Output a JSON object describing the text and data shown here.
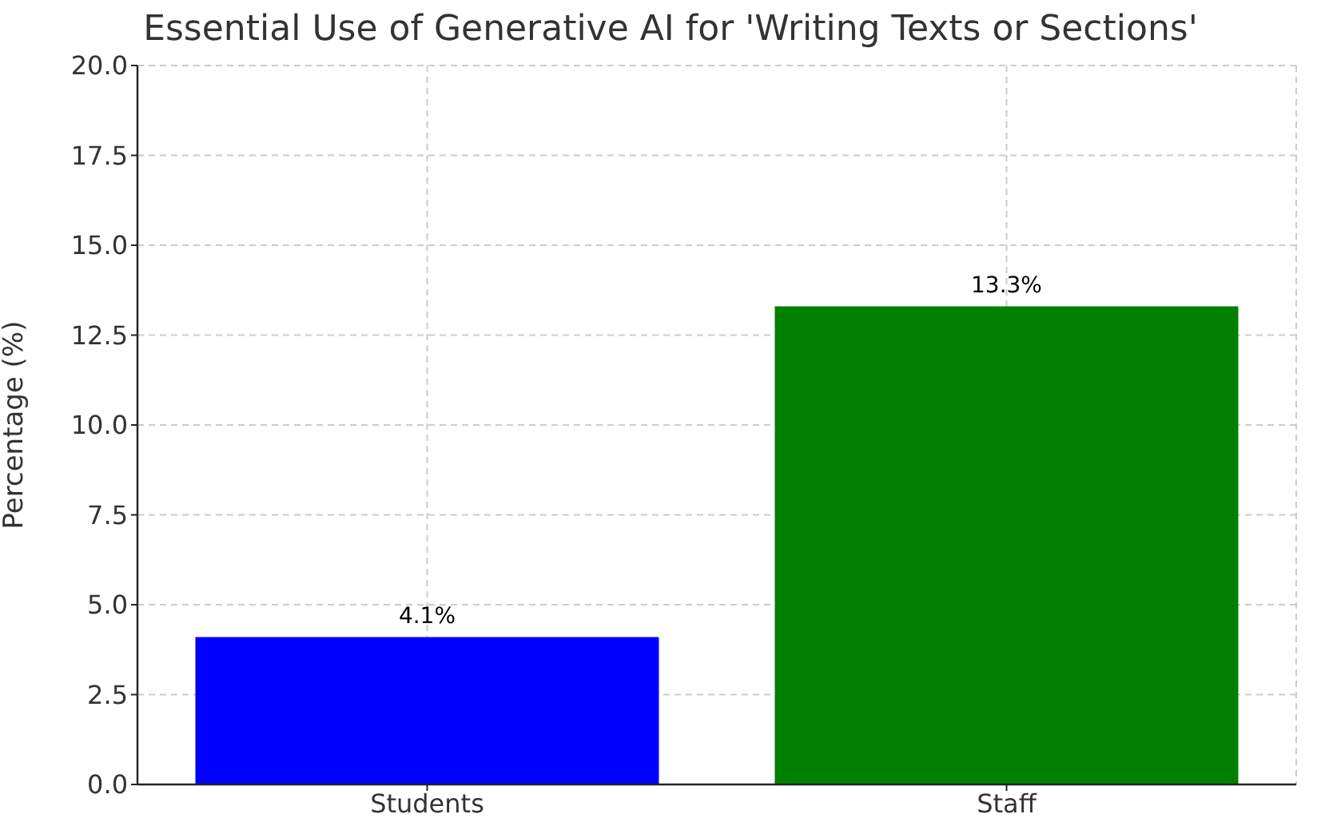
{
  "chart_data": {
    "type": "bar",
    "title": "Essential Use of Generative AI for 'Writing Texts or Sections'",
    "ylabel": "Percentage (%)",
    "categories": [
      "Students",
      "Staff"
    ],
    "values": [
      4.1,
      13.3
    ],
    "colors": [
      "#0000ff",
      "#008000"
    ],
    "value_labels": [
      "4.1%",
      "13.3%"
    ],
    "ylim": [
      0,
      20
    ],
    "yticks": [
      {
        "value": 0,
        "label": "0.0"
      },
      2.5,
      {
        "value": 5,
        "label": "5.0"
      },
      7.5,
      {
        "value": 10,
        "label": "10.0"
      },
      12.5,
      {
        "value": 15,
        "label": "15.0"
      },
      17.5,
      {
        "value": 20,
        "label": "20.0"
      }
    ],
    "grid": true
  }
}
